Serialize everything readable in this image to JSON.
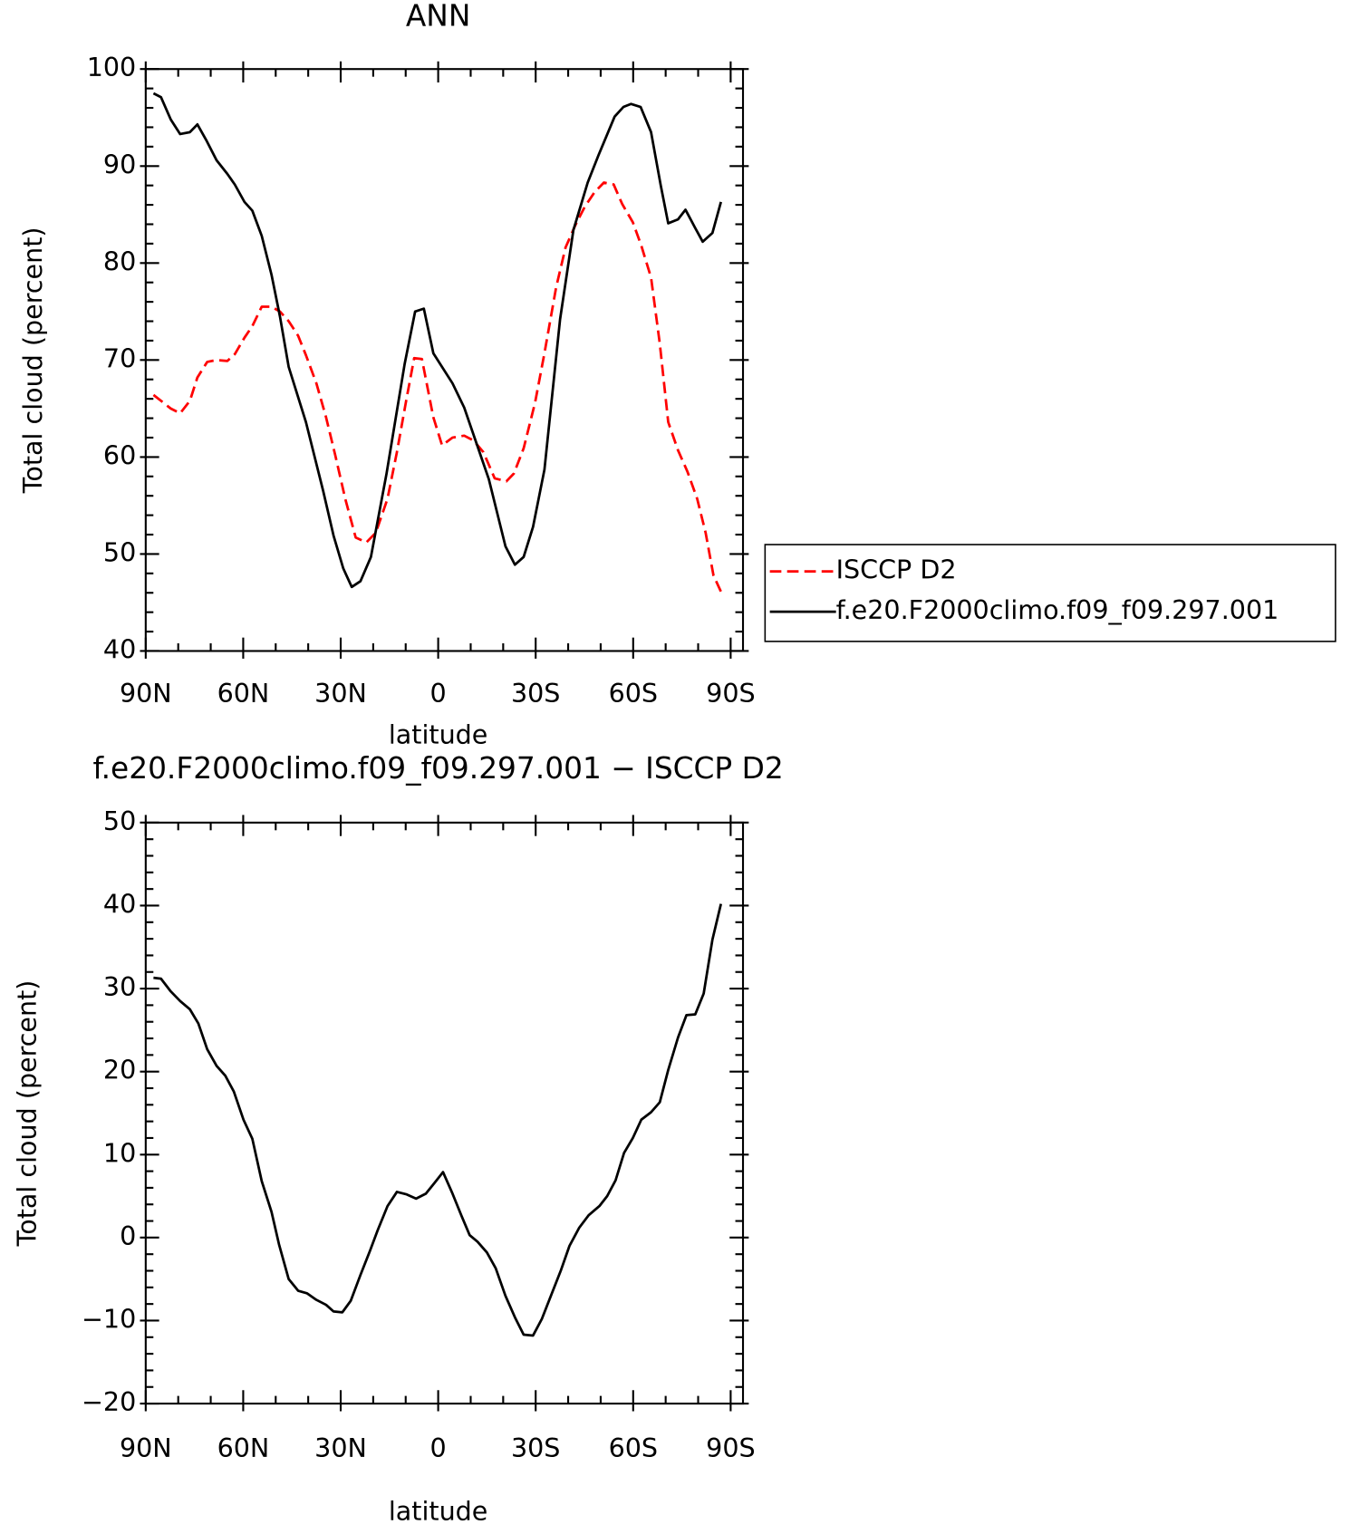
{
  "chart_data": [
    {
      "type": "line",
      "title": "ANN",
      "xlabel": "latitude",
      "ylabel": "Total cloud (percent)",
      "xlim": [
        90,
        -93.8
      ],
      "ylim": [
        40,
        100
      ],
      "xticks": [
        {
          "value": 90,
          "label": "90N"
        },
        {
          "value": 60,
          "label": "60N"
        },
        {
          "value": 30,
          "label": "30N"
        },
        0,
        {
          "value": -30,
          "label": "30S"
        },
        {
          "value": -60,
          "label": "60S"
        },
        {
          "value": -90,
          "label": "90S"
        }
      ],
      "yticks": [
        40,
        50,
        60,
        70,
        80,
        90,
        100
      ],
      "legend": "right",
      "series": [
        {
          "name": "ISCCP D2",
          "color": "#ff0000",
          "line_style": "dashed",
          "x": [
            87.6,
            85.3,
            82.3,
            79.4,
            76.4,
            74.1,
            71.1,
            68.2,
            64.9,
            62.6,
            59.6,
            57.2,
            54.3,
            51.3,
            48.7,
            46.0,
            43.1,
            40.7,
            37.5,
            34.5,
            31.6,
            28.6,
            25.4,
            22.1,
            19.2,
            15.6,
            12.7,
            9.7,
            7.4,
            5.0,
            1.5,
            -1.2,
            -4.4,
            -8.0,
            -10.9,
            -13.9,
            -17.4,
            -21.0,
            -23.3,
            -26.3,
            -29.8,
            -32.7,
            -36.3,
            -39.2,
            -42.2,
            -45.1,
            -48.1,
            -51.0,
            -54.0,
            -56.6,
            -59.9,
            -62.5,
            -65.5,
            -68.2,
            -70.8,
            -73.8,
            -76.7,
            -79.7,
            -82.3,
            -84.7,
            -87.3
          ],
          "values": [
            66.4,
            65.8,
            65.0,
            64.5,
            65.8,
            68.2,
            69.8,
            70.0,
            69.9,
            70.6,
            72.3,
            73.5,
            75.5,
            75.5,
            75.0,
            74.0,
            72.5,
            70.5,
            67.6,
            64.1,
            60.1,
            55.7,
            51.7,
            51.2,
            52.2,
            55.7,
            60.5,
            66.1,
            70.2,
            70.1,
            64.1,
            61.2,
            62.0,
            62.2,
            61.7,
            60.5,
            57.8,
            57.5,
            58.3,
            60.9,
            65.6,
            70.7,
            77.5,
            81.6,
            83.9,
            85.8,
            87.3,
            88.3,
            88.1,
            86.1,
            84.2,
            81.8,
            78.5,
            71.7,
            63.6,
            60.7,
            58.5,
            55.7,
            52.2,
            47.8,
            45.9
          ]
        },
        {
          "name": "f.e20.F2000climo.f09_f09.297.001",
          "color": "#000000",
          "line_style": "solid",
          "x": [
            87.6,
            85.3,
            82.3,
            79.4,
            76.4,
            74.1,
            71.4,
            68.2,
            64.9,
            62.6,
            59.6,
            57.2,
            54.3,
            51.3,
            48.7,
            46.0,
            40.7,
            35.4,
            32.2,
            29.2,
            26.6,
            23.9,
            20.7,
            15.9,
            10.3,
            7.1,
            4.4,
            1.5,
            -4.4,
            -8.0,
            -15.6,
            -20.7,
            -23.6,
            -26.3,
            -29.2,
            -32.7,
            -37.5,
            -41.6,
            -46.0,
            -49.3,
            -54.3,
            -57.0,
            -59.3,
            -62.3,
            -65.5,
            -68.5,
            -70.8,
            -73.8,
            -76.1,
            -79.1,
            -81.4,
            -84.4,
            -87.0
          ],
          "values": [
            97.5,
            97.1,
            94.8,
            93.3,
            93.5,
            94.3,
            92.7,
            90.6,
            89.2,
            88.1,
            86.3,
            85.4,
            82.8,
            78.8,
            74.5,
            69.3,
            63.6,
            56.5,
            51.9,
            48.5,
            46.6,
            47.2,
            49.7,
            58.3,
            69.6,
            75.0,
            75.3,
            70.7,
            67.6,
            65.1,
            57.7,
            50.8,
            48.9,
            49.7,
            52.8,
            58.7,
            74.2,
            83.4,
            88.3,
            91.1,
            95.1,
            96.1,
            96.4,
            96.1,
            93.5,
            88.0,
            84.1,
            84.5,
            85.5,
            83.6,
            82.2,
            83.1,
            86.3
          ]
        }
      ]
    },
    {
      "type": "line",
      "title": "f.e20.F2000climo.f09_f09.297.001 − ISCCP D2",
      "xlabel": "latitude",
      "ylabel": "Total cloud (percent)",
      "xlim": [
        90,
        -93.8
      ],
      "ylim": [
        -20,
        50
      ],
      "xticks": [
        {
          "value": 90,
          "label": "90N"
        },
        {
          "value": 60,
          "label": "60N"
        },
        {
          "value": 30,
          "label": "30N"
        },
        0,
        {
          "value": -30,
          "label": "30S"
        },
        {
          "value": -60,
          "label": "60S"
        },
        {
          "value": -90,
          "label": "90S"
        }
      ],
      "yticks": [
        {
          "value": -20,
          "label": "−20"
        },
        {
          "value": -10,
          "label": "−10"
        },
        0,
        10,
        20,
        30,
        40,
        50
      ],
      "series": [
        {
          "color": "#000000",
          "line_style": "solid",
          "x": [
            87.6,
            85.3,
            82.4,
            79.4,
            76.4,
            73.8,
            71.1,
            68.2,
            65.5,
            62.9,
            59.9,
            57.2,
            54.3,
            51.3,
            49.0,
            46.0,
            43.1,
            40.4,
            37.5,
            34.5,
            32.2,
            29.5,
            26.9,
            23.9,
            21.0,
            18.6,
            15.6,
            12.7,
            9.7,
            6.8,
            3.8,
            0.9,
            -1.5,
            -4.4,
            -7.1,
            -9.7,
            -12.1,
            -15.0,
            -17.7,
            -20.7,
            -23.6,
            -26.3,
            -29.2,
            -31.9,
            -34.8,
            -37.8,
            -40.4,
            -43.4,
            -46.3,
            -49.6,
            -52.0,
            -54.6,
            -57.2,
            -59.9,
            -62.5,
            -65.5,
            -68.2,
            -70.8,
            -73.8,
            -76.4,
            -79.1,
            -81.7,
            -84.4,
            -87.0
          ],
          "values": [
            31.3,
            31.2,
            29.7,
            28.5,
            27.5,
            25.8,
            22.7,
            20.7,
            19.5,
            17.6,
            14.2,
            11.9,
            6.8,
            3.1,
            -0.8,
            -5.0,
            -6.4,
            -6.7,
            -7.5,
            -8.1,
            -8.9,
            -9.0,
            -7.6,
            -4.5,
            -1.6,
            0.9,
            3.8,
            5.5,
            5.2,
            4.7,
            5.3,
            6.7,
            7.9,
            5.3,
            2.7,
            0.3,
            -0.5,
            -1.8,
            -3.7,
            -7.0,
            -9.6,
            -11.7,
            -11.8,
            -9.8,
            -6.9,
            -3.9,
            -1.0,
            1.2,
            2.7,
            3.8,
            5.0,
            6.9,
            10.2,
            12.0,
            14.2,
            15.1,
            16.3,
            20.2,
            24.1,
            26.8,
            26.9,
            29.4,
            35.9,
            40.2
          ]
        }
      ]
    }
  ]
}
